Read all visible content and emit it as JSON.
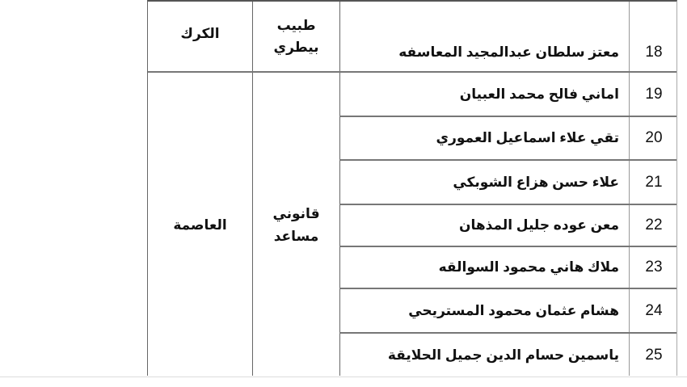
{
  "rows": [
    {
      "number": "18",
      "name": "معتز سلطان عبدالمجيد المعاسفه"
    },
    {
      "number": "19",
      "name": "اماني فالح محمد العبيان"
    },
    {
      "number": "20",
      "name": "تقي علاء اسماعيل العموري"
    },
    {
      "number": "21",
      "name": "علاء حسن هزاع الشوبكي"
    },
    {
      "number": "22",
      "name": "معن عوده جليل المذهان"
    },
    {
      "number": "23",
      "name": "ملاك هاني محمود السوالقه"
    },
    {
      "number": "24",
      "name": "هشام عثمان محمود المستريحي"
    },
    {
      "number": "25",
      "name": "ياسمين حسام الدين جميل الحلايقة"
    }
  ],
  "groups": [
    {
      "job_line1": "طبيب",
      "job_line2": "بيطري",
      "region": "الكرك"
    },
    {
      "job_line1": "قانوني",
      "job_line2": "مساعد",
      "region": "العاصمة"
    }
  ]
}
